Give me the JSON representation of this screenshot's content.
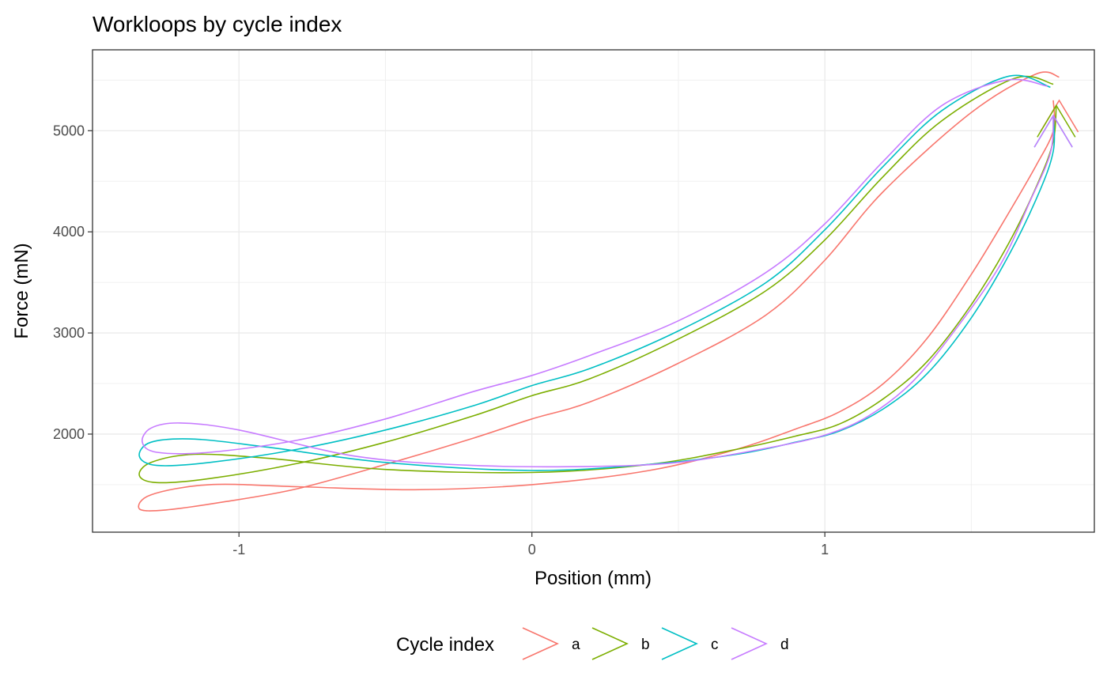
{
  "chart_data": {
    "type": "line",
    "title": "Workloops by cycle index",
    "xlabel": "Position (mm)",
    "ylabel": "Force (mN)",
    "xlim": [
      -1.5,
      1.92
    ],
    "ylim": [
      1030,
      5800
    ],
    "x_ticks": [
      -1,
      0,
      1
    ],
    "x_tick_labels": [
      "-1",
      "0",
      "1"
    ],
    "y_ticks": [
      2000,
      3000,
      4000,
      5000
    ],
    "y_tick_labels": [
      "2000",
      "3000",
      "4000",
      "5000"
    ],
    "grid": true,
    "legend": {
      "title": "Cycle index",
      "position": "bottom"
    },
    "series": [
      {
        "name": "a",
        "color": "#F8766D",
        "x": [
          1.8,
          1.72,
          1.5,
          1.2,
          1.0,
          0.8,
          0.5,
          0.2,
          0.0,
          -0.2,
          -0.5,
          -0.8,
          -1.05,
          -1.25,
          -1.34,
          -1.3,
          -1.1,
          -0.8,
          -0.4,
          0.0,
          0.4,
          0.7,
          0.9,
          1.05,
          1.2,
          1.35,
          1.5,
          1.62,
          1.72,
          1.78,
          1.78
        ],
        "y": [
          5530,
          5560,
          5180,
          4400,
          3720,
          3180,
          2700,
          2320,
          2150,
          1960,
          1700,
          1460,
          1330,
          1250,
          1260,
          1400,
          1500,
          1480,
          1450,
          1500,
          1640,
          1850,
          2050,
          2220,
          2500,
          2950,
          3580,
          4150,
          4650,
          5000,
          5300
        ],
        "arrow": {
          "x": 1.8,
          "y": 5300
        }
      },
      {
        "name": "b",
        "color": "#7CAE00",
        "x": [
          1.78,
          1.65,
          1.4,
          1.2,
          1.0,
          0.8,
          0.5,
          0.2,
          0.0,
          -0.2,
          -0.5,
          -0.8,
          -1.1,
          -1.28,
          -1.34,
          -1.3,
          -1.15,
          -0.9,
          -0.5,
          0.0,
          0.4,
          0.7,
          0.9,
          1.05,
          1.2,
          1.35,
          1.5,
          1.63,
          1.73,
          1.78,
          1.79
        ],
        "y": [
          5460,
          5520,
          5100,
          4550,
          3920,
          3420,
          2940,
          2550,
          2380,
          2180,
          1920,
          1710,
          1560,
          1520,
          1590,
          1720,
          1800,
          1760,
          1650,
          1620,
          1700,
          1850,
          1980,
          2100,
          2350,
          2720,
          3280,
          3900,
          4500,
          4900,
          5250
        ],
        "arrow": {
          "x": 1.79,
          "y": 5250
        }
      },
      {
        "name": "c",
        "color": "#00BFC4",
        "x": [
          1.77,
          1.63,
          1.4,
          1.2,
          1.0,
          0.8,
          0.5,
          0.2,
          0.0,
          -0.2,
          -0.5,
          -0.8,
          -1.1,
          -1.28,
          -1.34,
          -1.3,
          -1.15,
          -0.9,
          -0.5,
          0.0,
          0.4,
          0.7,
          0.9,
          1.05,
          1.2,
          1.35,
          1.5,
          1.63,
          1.73,
          1.78,
          1.78
        ],
        "y": [
          5430,
          5540,
          5200,
          4650,
          4020,
          3500,
          3020,
          2650,
          2480,
          2280,
          2040,
          1850,
          1720,
          1690,
          1780,
          1920,
          1950,
          1870,
          1720,
          1640,
          1700,
          1800,
          1920,
          2030,
          2250,
          2600,
          3150,
          3780,
          4380,
          4800,
          5150
        ],
        "arrow": {
          "x": 1.78,
          "y": 5150
        }
      },
      {
        "name": "d",
        "color": "#C77CFF",
        "x": [
          1.76,
          1.62,
          1.4,
          1.2,
          1.0,
          0.8,
          0.5,
          0.2,
          0.0,
          -0.2,
          -0.5,
          -0.8,
          -1.1,
          -1.28,
          -1.33,
          -1.3,
          -1.2,
          -1.0,
          -0.6,
          -0.2,
          0.2,
          0.5,
          0.8,
          1.0,
          1.15,
          1.3,
          1.45,
          1.6,
          1.7,
          1.77,
          1.78
        ],
        "y": [
          5440,
          5500,
          5250,
          4700,
          4080,
          3600,
          3120,
          2780,
          2580,
          2420,
          2150,
          1940,
          1820,
          1820,
          1920,
          2060,
          2110,
          2040,
          1780,
          1690,
          1680,
          1720,
          1860,
          1990,
          2180,
          2520,
          3050,
          3680,
          4300,
          4780,
          5150
        ],
        "arrow": {
          "x": 1.78,
          "y": 5150
        }
      }
    ]
  }
}
